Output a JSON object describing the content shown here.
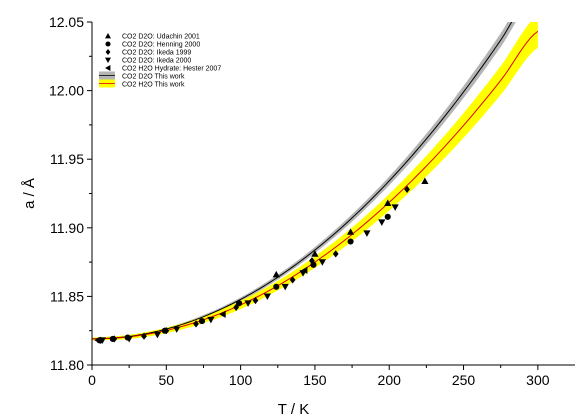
{
  "chart_data": {
    "type": "scatter",
    "xlabel": "T / K",
    "ylabel": "a / Å",
    "xlim": [
      0,
      325
    ],
    "ylim": [
      11.8,
      12.05
    ],
    "x_ticks": [
      0,
      50,
      100,
      150,
      200,
      250,
      300
    ],
    "y_ticks": [
      11.8,
      11.85,
      11.9,
      11.95,
      12.0,
      12.05
    ],
    "y_tick_labels": [
      "11.80",
      "11.85",
      "11.90",
      "11.95",
      "12.00",
      "12.05"
    ],
    "grid": false,
    "legend_position": "top-left",
    "series": [
      {
        "name": "CO2 D2O: Udachin 2001",
        "marker": "triangle-up",
        "color": "#000000",
        "points": [
          [
            124,
            11.866
          ],
          [
            150,
            11.881
          ],
          [
            174,
            11.897
          ],
          [
            199,
            11.918
          ],
          [
            224,
            11.934
          ]
        ]
      },
      {
        "name": "CO2 D2O: Henning 2000",
        "marker": "circle",
        "color": "#000000",
        "points": [
          [
            5,
            11.818
          ],
          [
            14,
            11.819
          ],
          [
            24,
            11.82
          ],
          [
            49,
            11.825
          ],
          [
            74,
            11.832
          ],
          [
            99,
            11.845
          ],
          [
            124,
            11.857
          ],
          [
            149,
            11.873
          ],
          [
            174,
            11.89
          ],
          [
            199,
            11.908
          ]
        ]
      },
      {
        "name": "CO2 D2O: Ikeda 1999",
        "marker": "diamond",
        "color": "#000000",
        "points": [
          [
            6,
            11.818
          ],
          [
            15,
            11.819
          ],
          [
            35,
            11.821
          ],
          [
            50,
            11.825
          ],
          [
            70,
            11.83
          ],
          [
            97,
            11.842
          ],
          [
            110,
            11.847
          ],
          [
            135,
            11.862
          ],
          [
            148,
            11.876
          ],
          [
            164,
            11.881
          ],
          [
            212,
            11.928
          ]
        ]
      },
      {
        "name": "CO2 D2O: Ikeda 2000",
        "marker": "triangle-down",
        "color": "#000000",
        "points": [
          [
            7,
            11.818
          ],
          [
            25,
            11.819
          ],
          [
            44,
            11.822
          ],
          [
            57,
            11.826
          ],
          [
            80,
            11.833
          ],
          [
            105,
            11.845
          ],
          [
            118,
            11.85
          ],
          [
            130,
            11.857
          ],
          [
            142,
            11.867
          ],
          [
            155,
            11.875
          ],
          [
            185,
            11.896
          ],
          [
            195,
            11.904
          ],
          [
            204,
            11.915
          ]
        ]
      },
      {
        "name": "CO2 H2O Hydrate: Hester 2007",
        "marker": "triangle-left",
        "color": "#000000",
        "points": [
          [
            4,
            11.818
          ],
          [
            88,
            11.837
          ],
          [
            143,
            11.869
          ]
        ]
      }
    ],
    "fits": [
      {
        "name": "CO2 D2O This work",
        "line_color": "#000000",
        "band_color": "#b4b4b4",
        "x": [
          0,
          25,
          50,
          75,
          100,
          125,
          150,
          175,
          200,
          225,
          250,
          275,
          300
        ],
        "y": [
          11.819,
          11.8208,
          11.8262,
          11.8352,
          11.8478,
          11.864,
          11.8838,
          11.9072,
          11.9342,
          11.9648,
          11.999,
          12.0368,
          12.0782
        ],
        "band_halfwidth": [
          0.001,
          0.001,
          0.001,
          0.0012,
          0.0015,
          0.0018,
          0.0022,
          0.0027,
          0.0032,
          0.0038,
          0.0044,
          0.005,
          0.0058
        ]
      },
      {
        "name": "CO2 H2O This work",
        "line_color": "#e00000",
        "band_color": "#ffff00",
        "x": [
          0,
          25,
          50,
          75,
          100,
          125,
          150,
          175,
          200,
          225,
          250,
          275,
          300
        ],
        "y": [
          11.819,
          11.8205,
          11.8252,
          11.833,
          11.8438,
          11.8578,
          11.875,
          11.8952,
          11.9186,
          11.945,
          11.9746,
          12.0074,
          12.0432
        ],
        "band_halfwidth": [
          0.001,
          0.0015,
          0.002,
          0.0025,
          0.003,
          0.0035,
          0.0042,
          0.005,
          0.006,
          0.0075,
          0.009,
          0.0105,
          0.012
        ]
      }
    ]
  }
}
